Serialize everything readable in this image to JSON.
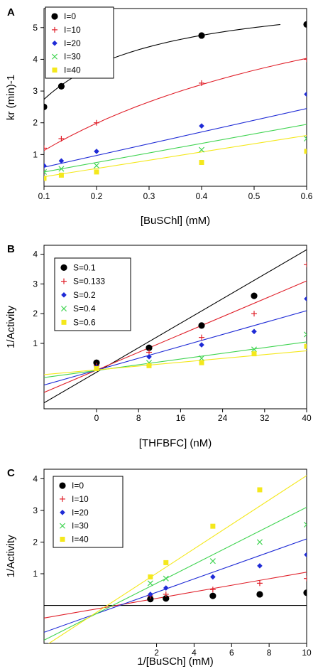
{
  "figure": {
    "panels": [
      "A",
      "B",
      "C"
    ]
  },
  "chart_data": [
    {
      "panel": "A",
      "type": "scatter",
      "xlabel": "[BuSChl] (mM)",
      "ylabel": "kr (min)-1",
      "xlim": [
        0.1,
        0.6
      ],
      "ylim": [
        0,
        5.6
      ],
      "xticks": [
        "0.1",
        "0.2",
        "0.3",
        "0.4",
        "0.5",
        "0.6"
      ],
      "yticks": [
        "1",
        "2",
        "3",
        "4",
        "5"
      ],
      "legend_position": "top-left",
      "series": [
        {
          "name": "I=0",
          "color": "#000000",
          "marker": "circle",
          "points": [
            [
              0.1,
              2.5
            ],
            [
              0.133,
              3.15
            ],
            [
              0.2,
              3.6
            ],
            [
              0.4,
              4.75
            ],
            [
              0.6,
              5.1
            ]
          ],
          "fit": {
            "kind": "mm",
            "vmax": 6.3,
            "km": 0.13,
            "x_range": [
              0.1,
              0.55
            ]
          }
        },
        {
          "name": "I=10",
          "color": "#e0202a",
          "marker": "plus",
          "points": [
            [
              0.1,
              1.2
            ],
            [
              0.133,
              1.5
            ],
            [
              0.2,
              2.0
            ],
            [
              0.4,
              3.25
            ],
            [
              0.6,
              4.0
            ]
          ],
          "fit": {
            "kind": "mm",
            "vmax": 8.33,
            "km": 0.64,
            "x_range": [
              0.1,
              0.6
            ]
          }
        },
        {
          "name": "I=20",
          "color": "#1f2bd6",
          "marker": "diamond",
          "points": [
            [
              0.1,
              0.65
            ],
            [
              0.133,
              0.8
            ],
            [
              0.2,
              1.1
            ],
            [
              0.4,
              1.9
            ],
            [
              0.6,
              2.9
            ]
          ],
          "fit": {
            "kind": "linear",
            "y0": 0.6,
            "y1": 2.45,
            "x_range": [
              0.1,
              0.6
            ]
          }
        },
        {
          "name": "I=30",
          "color": "#41d452",
          "marker": "x",
          "points": [
            [
              0.1,
              0.45
            ],
            [
              0.133,
              0.55
            ],
            [
              0.2,
              0.65
            ],
            [
              0.4,
              1.15
            ],
            [
              0.6,
              1.5
            ]
          ],
          "fit": {
            "kind": "linear",
            "y0": 0.45,
            "y1": 1.95,
            "x_range": [
              0.1,
              0.6
            ]
          }
        },
        {
          "name": "I=40",
          "color": "#f4e81c",
          "marker": "square",
          "points": [
            [
              0.1,
              0.25
            ],
            [
              0.133,
              0.35
            ],
            [
              0.2,
              0.45
            ],
            [
              0.4,
              0.75
            ],
            [
              0.6,
              1.1
            ]
          ],
          "fit": {
            "kind": "linear",
            "y0": 0.3,
            "y1": 1.6,
            "x_range": [
              0.1,
              0.6
            ]
          }
        }
      ]
    },
    {
      "panel": "B",
      "type": "scatter",
      "xlabel": "[THFBFC] (nM)",
      "ylabel": "1/Activity",
      "xlim": [
        -10,
        40
      ],
      "ylim": [
        -1.2,
        4.3
      ],
      "xticks": [
        "0",
        "8",
        "16",
        "24",
        "32",
        "40"
      ],
      "yticks": [
        "1",
        "2",
        "3",
        "4"
      ],
      "legend_position": "top-left",
      "series": [
        {
          "name": "S=0.1",
          "color": "#000000",
          "marker": "circle",
          "points": [
            [
              0,
              0.35
            ],
            [
              10,
              0.85
            ],
            [
              20,
              1.6
            ],
            [
              30,
              2.6
            ]
          ],
          "fit": {
            "kind": "linear",
            "y0": -1.0,
            "y1": 4.15,
            "x_range": [
              -10,
              40
            ]
          }
        },
        {
          "name": "S=0.133",
          "color": "#e0202a",
          "marker": "plus",
          "points": [
            [
              0,
              0.25
            ],
            [
              10,
              0.7
            ],
            [
              20,
              1.2
            ],
            [
              30,
              2.0
            ],
            [
              40,
              3.65
            ]
          ],
          "fit": {
            "kind": "linear",
            "y0": -0.65,
            "y1": 3.1,
            "x_range": [
              -10,
              40
            ]
          }
        },
        {
          "name": "S=0.2",
          "color": "#1f2bd6",
          "marker": "diamond",
          "points": [
            [
              0,
              0.2
            ],
            [
              10,
              0.55
            ],
            [
              20,
              0.95
            ],
            [
              30,
              1.4
            ],
            [
              40,
              2.5
            ]
          ],
          "fit": {
            "kind": "linear",
            "y0": -0.4,
            "y1": 2.1,
            "x_range": [
              -10,
              40
            ]
          }
        },
        {
          "name": "S=0.4",
          "color": "#41d452",
          "marker": "x",
          "points": [
            [
              0,
              0.15
            ],
            [
              10,
              0.35
            ],
            [
              20,
              0.5
            ],
            [
              30,
              0.8
            ],
            [
              40,
              1.3
            ]
          ],
          "fit": {
            "kind": "linear",
            "y0": -0.15,
            "y1": 1.05,
            "x_range": [
              -10,
              40
            ]
          }
        },
        {
          "name": "S=0.6",
          "color": "#f4e81c",
          "marker": "square",
          "points": [
            [
              0,
              0.15
            ],
            [
              10,
              0.25
            ],
            [
              20,
              0.35
            ],
            [
              30,
              0.65
            ],
            [
              40,
              0.9
            ]
          ],
          "fit": {
            "kind": "linear",
            "y0": -0.05,
            "y1": 0.75,
            "x_range": [
              -10,
              40
            ]
          }
        }
      ]
    },
    {
      "panel": "C",
      "type": "scatter",
      "xlabel": "1/[BuSCh] (mM)",
      "ylabel": "1/Activity",
      "xlim": [
        -4,
        10
      ],
      "ylim": [
        -1.2,
        4.3
      ],
      "xticks": [
        "2",
        "4",
        "6",
        "8",
        "10"
      ],
      "yticks": [
        "1",
        "2",
        "3",
        "4"
      ],
      "legend_position": "top-left",
      "series": [
        {
          "name": "I=0",
          "color": "#000000",
          "marker": "circle",
          "points": [
            [
              1.67,
              0.2
            ],
            [
              2.5,
              0.22
            ],
            [
              5.0,
              0.3
            ],
            [
              7.5,
              0.35
            ],
            [
              10.0,
              0.4
            ]
          ],
          "fit": {
            "kind": "linear",
            "y0": 0.0,
            "y1": 0.0,
            "x_range": [
              -4,
              10
            ]
          }
        },
        {
          "name": "I=10",
          "color": "#e0202a",
          "marker": "plus",
          "points": [
            [
              1.67,
              0.3
            ],
            [
              2.5,
              0.35
            ],
            [
              5.0,
              0.5
            ],
            [
              7.5,
              0.7
            ],
            [
              10.0,
              0.85
            ]
          ],
          "fit": {
            "kind": "linear",
            "y0": -0.4,
            "y1": 1.05,
            "x_range": [
              -4,
              10
            ]
          }
        },
        {
          "name": "I=20",
          "color": "#1f2bd6",
          "marker": "diamond",
          "points": [
            [
              1.67,
              0.35
            ],
            [
              2.5,
              0.55
            ],
            [
              5.0,
              0.9
            ],
            [
              7.5,
              1.25
            ],
            [
              10.0,
              1.6
            ]
          ],
          "fit": {
            "kind": "linear",
            "y0": -0.85,
            "y1": 2.1,
            "x_range": [
              -4,
              10
            ]
          }
        },
        {
          "name": "I=30",
          "color": "#41d452",
          "marker": "x",
          "points": [
            [
              1.67,
              0.7
            ],
            [
              2.5,
              0.85
            ],
            [
              5.0,
              1.4
            ],
            [
              7.5,
              2.0
            ],
            [
              10.0,
              2.55
            ]
          ],
          "fit": {
            "kind": "linear",
            "y0": -1.1,
            "y1": 3.1,
            "x_range": [
              -4,
              10
            ]
          }
        },
        {
          "name": "I=40",
          "color": "#f4e81c",
          "marker": "square",
          "points": [
            [
              1.67,
              0.9
            ],
            [
              2.5,
              1.35
            ],
            [
              5.0,
              2.5
            ],
            [
              7.5,
              3.65
            ]
          ],
          "fit": {
            "kind": "linear",
            "y0": -1.3,
            "y1": 4.1,
            "x_range": [
              -4,
              10
            ]
          }
        }
      ]
    }
  ]
}
